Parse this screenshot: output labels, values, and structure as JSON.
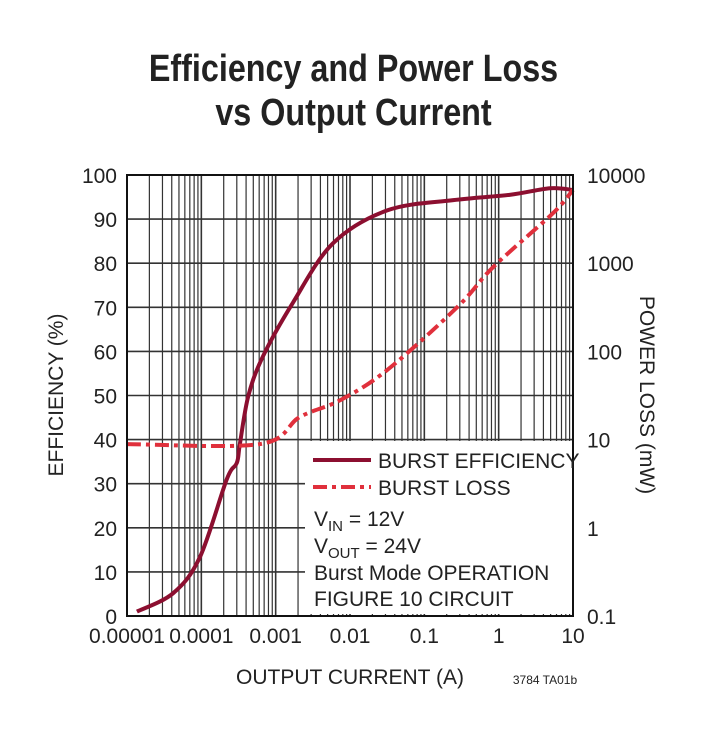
{
  "chart_data": {
    "type": "line",
    "title": [
      "Efficiency and Power Loss",
      "vs Output Current"
    ],
    "xlabel": "OUTPUT CURRENT (A)",
    "ylabel": "EFFICIENCY (%)",
    "y2label": "POWER LOSS (mW)",
    "xscale": "log",
    "xlim": [
      1e-05,
      10
    ],
    "ylim": [
      0,
      100
    ],
    "y2scale": "log",
    "y2lim": [
      0.1,
      10000
    ],
    "xticks": [
      "0.00001",
      "0.0001",
      "0.001",
      "0.01",
      "0.1",
      "1",
      "10"
    ],
    "yticks": [
      "0",
      "10",
      "20",
      "30",
      "40",
      "50",
      "60",
      "70",
      "80",
      "90",
      "100"
    ],
    "y2ticks": [
      "0.1",
      "1",
      "10",
      "100",
      "1000",
      "10000"
    ],
    "grid": true,
    "series": [
      {
        "name": "BURST EFFICIENCY",
        "axis": "left",
        "color": "#8c0f30",
        "style": "solid",
        "x": [
          1.36e-05,
          4.2e-05,
          9.6e-05,
          0.00022,
          0.0003,
          0.00033,
          0.00043,
          0.00068,
          0.0017,
          0.0059,
          0.032,
          0.245,
          1.4,
          4.9,
          10
        ],
        "y": [
          1,
          5.2,
          13.4,
          31,
          34.7,
          39,
          50,
          59,
          71,
          84.5,
          92,
          94.3,
          95.5,
          97,
          96.6
        ]
      },
      {
        "name": "BURST LOSS",
        "axis": "right",
        "color": "#e0303c",
        "style": "dash-dot",
        "x": [
          1e-05,
          0.00062,
          0.0021,
          0.0074,
          0.032,
          0.28,
          0.85,
          5.4,
          10
        ],
        "y": [
          8.9,
          8.9,
          18,
          28,
          62,
          320,
          910,
          3700,
          6800
        ]
      }
    ],
    "legend_position": "bottom-right",
    "annotations": [
      "V",
      "IN",
      " = 12V",
      "V",
      "OUT",
      " = 24V",
      "Burst Mode OPERATION",
      "FIGURE 10 CIRCUIT"
    ],
    "footnote": "3784 TA01b"
  }
}
